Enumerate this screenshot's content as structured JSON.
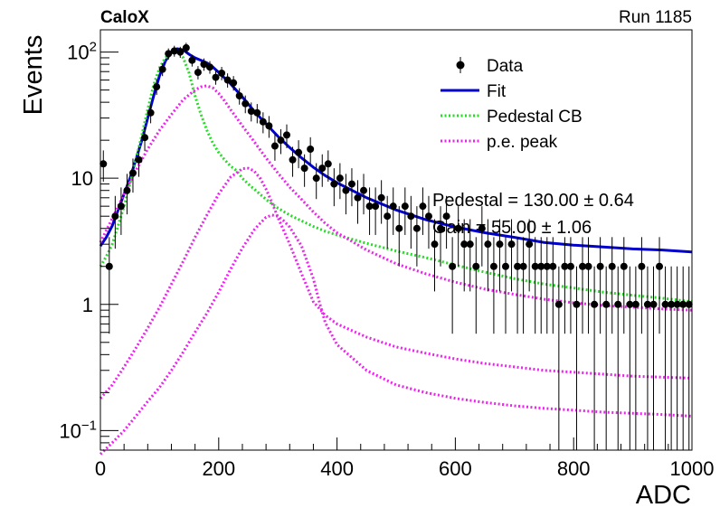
{
  "header": {
    "experiment": "CaloX",
    "run": "Run 1185"
  },
  "colors": {
    "data": "#000000",
    "fit": "#0000cc",
    "pedestal": "#22dd22",
    "pe": "#ee22ee"
  },
  "chart_data": {
    "type": "scatter",
    "title": "",
    "xlabel": "ADC",
    "ylabel": "Events",
    "xlim": [
      0,
      1000
    ],
    "ylim": [
      0.07,
      150
    ],
    "yscale": "log",
    "grid": false,
    "legend_position": "top-right",
    "x_ticks": [
      "0",
      "200",
      "400",
      "600",
      "800",
      "1000"
    ],
    "y_ticks": [
      {
        "value": 0.1,
        "base": "10",
        "exp": "−1"
      },
      {
        "value": 1,
        "label": "1"
      },
      {
        "value": 10,
        "label": "10"
      },
      {
        "value": 100,
        "base": "10",
        "exp": "2"
      }
    ],
    "legend": [
      {
        "key": "data",
        "label": "Data"
      },
      {
        "key": "fit",
        "label": "Fit"
      },
      {
        "key": "pedestal",
        "label": "Pedestal CB"
      },
      {
        "key": "pe",
        "label": "p.e. peak"
      }
    ],
    "annotations": [
      "Pedestal = 130.00 ± 0.64",
      "Gain = 55.00 ± 1.06"
    ],
    "series": [
      {
        "name": "Data",
        "kind": "points",
        "x": [
          5,
          15,
          25,
          35,
          45,
          55,
          65,
          75,
          85,
          95,
          105,
          115,
          125,
          135,
          145,
          155,
          165,
          175,
          185,
          195,
          205,
          215,
          225,
          235,
          245,
          255,
          265,
          275,
          285,
          295,
          305,
          315,
          325,
          335,
          345,
          355,
          365,
          375,
          385,
          395,
          405,
          415,
          425,
          435,
          445,
          455,
          465,
          475,
          485,
          495,
          505,
          515,
          525,
          535,
          545,
          555,
          565,
          575,
          585,
          595,
          605,
          615,
          625,
          635,
          645,
          655,
          665,
          675,
          685,
          695,
          705,
          715,
          725,
          735,
          745,
          755,
          765,
          775,
          785,
          795,
          805,
          815,
          825,
          835,
          845,
          855,
          865,
          875,
          885,
          895,
          905,
          915,
          925,
          935,
          945,
          955,
          965,
          975,
          985,
          995
        ],
        "y": [
          13,
          2,
          5,
          6,
          8,
          11,
          14,
          21,
          33,
          53,
          73,
          97,
          102,
          100,
          108,
          86,
          69,
          80,
          76,
          63,
          68,
          60,
          57,
          45,
          39,
          34,
          33,
          28,
          26,
          18,
          20,
          22,
          14,
          16,
          12,
          17,
          10,
          12,
          13,
          9,
          10,
          8,
          9,
          7,
          8,
          6,
          6,
          7,
          5,
          6,
          4,
          6,
          5,
          4,
          6,
          5,
          3,
          4,
          5,
          2,
          4,
          3,
          3,
          2,
          4,
          3,
          2,
          3,
          2,
          3,
          2,
          2,
          3,
          2,
          2,
          2,
          2,
          1,
          2,
          2,
          1,
          2,
          2,
          1,
          2,
          1,
          2,
          1,
          2,
          1,
          1,
          2,
          1,
          1,
          2,
          1,
          1,
          1,
          1,
          1
        ]
      },
      {
        "name": "Fit",
        "kind": "line",
        "x": [
          0,
          10,
          20,
          30,
          40,
          50,
          60,
          70,
          80,
          90,
          100,
          110,
          120,
          130,
          140,
          150,
          160,
          170,
          180,
          190,
          200,
          220,
          240,
          260,
          280,
          300,
          320,
          340,
          360,
          380,
          400,
          450,
          500,
          550,
          600,
          650,
          700,
          750,
          800,
          850,
          900,
          950,
          1000
        ],
        "y": [
          2.9,
          3.4,
          4.2,
          5.6,
          7.5,
          10,
          14,
          20,
          30,
          45,
          65,
          85,
          100,
          106,
          104,
          96,
          90,
          86,
          82,
          76,
          69,
          56,
          44,
          34,
          27,
          21.5,
          17.5,
          14.5,
          12.2,
          10.5,
          9.2,
          7,
          5.6,
          4.7,
          4.1,
          3.7,
          3.4,
          3.1,
          2.95,
          2.85,
          2.75,
          2.7,
          2.6
        ]
      },
      {
        "name": "Pedestal CB",
        "kind": "dotted",
        "x": [
          0,
          10,
          20,
          30,
          40,
          50,
          60,
          70,
          80,
          90,
          100,
          110,
          120,
          130,
          140,
          150,
          160,
          170,
          180,
          190,
          200,
          210,
          220,
          230,
          240,
          250,
          260,
          280,
          300,
          320,
          340,
          360,
          380,
          400,
          450,
          500,
          550,
          600,
          650,
          700,
          750,
          800,
          850,
          900,
          950,
          1000
        ],
        "y": [
          2.0,
          2.4,
          3.0,
          4.2,
          6.0,
          9,
          14,
          22,
          35,
          55,
          75,
          90,
          98,
          100,
          90,
          68,
          45,
          32,
          24,
          19,
          16,
          14,
          12.5,
          11.5,
          10,
          9,
          8.2,
          6.8,
          5.8,
          5.1,
          4.6,
          4.15,
          3.8,
          3.55,
          3.05,
          2.65,
          2.35,
          2.05,
          1.8,
          1.6,
          1.45,
          1.35,
          1.25,
          1.18,
          1.12,
          1.05
        ]
      },
      {
        "name": "p.e. peak 1",
        "kind": "dotted",
        "x": [
          0,
          20,
          40,
          60,
          80,
          100,
          120,
          140,
          160,
          170,
          180,
          190,
          200,
          210,
          220,
          240,
          260,
          280,
          300,
          320,
          340,
          360,
          380,
          400,
          450,
          500,
          550,
          600,
          650,
          700,
          750,
          800,
          850,
          900,
          950,
          1000
        ],
        "y": [
          3.1,
          4.8,
          7.5,
          11.5,
          17,
          24,
          32,
          42,
          50,
          53,
          54,
          52,
          47,
          41,
          35,
          26,
          19.5,
          14.5,
          11,
          8.5,
          6.8,
          5.4,
          4.4,
          3.7,
          2.7,
          2.1,
          1.75,
          1.5,
          1.32,
          1.2,
          1.1,
          1.03,
          0.98,
          0.95,
          0.92,
          0.9
        ]
      },
      {
        "name": "p.e. peak 2",
        "kind": "dotted",
        "x": [
          0,
          20,
          40,
          60,
          80,
          100,
          120,
          140,
          160,
          180,
          200,
          220,
          240,
          250,
          260,
          270,
          280,
          290,
          300,
          320,
          340,
          360,
          380,
          400,
          450,
          500,
          550,
          600,
          650,
          700,
          750,
          800,
          850,
          900,
          950,
          1000
        ],
        "y": [
          0.18,
          0.23,
          0.32,
          0.45,
          0.65,
          0.95,
          1.45,
          2.2,
          3.4,
          5.1,
          7.5,
          10.2,
          11.9,
          12.0,
          11.4,
          10.0,
          8.2,
          6.4,
          4.9,
          3.0,
          1.75,
          1.05,
          0.82,
          0.7,
          0.55,
          0.46,
          0.41,
          0.37,
          0.34,
          0.32,
          0.3,
          0.29,
          0.28,
          0.27,
          0.265,
          0.26
        ]
      },
      {
        "name": "p.e. peak 3",
        "kind": "dotted",
        "x": [
          0,
          20,
          40,
          60,
          80,
          100,
          120,
          140,
          160,
          180,
          200,
          220,
          240,
          260,
          270,
          280,
          290,
          300,
          310,
          320,
          340,
          360,
          370,
          380,
          400,
          450,
          500,
          550,
          600,
          650,
          700,
          750,
          800,
          850,
          900,
          950,
          1000
        ],
        "y": [
          0.065,
          0.08,
          0.1,
          0.13,
          0.17,
          0.22,
          0.3,
          0.42,
          0.6,
          0.85,
          1.25,
          1.9,
          2.8,
          3.9,
          4.4,
          4.9,
          5.1,
          5.0,
          4.6,
          4.1,
          2.9,
          1.6,
          1.05,
          0.72,
          0.48,
          0.3,
          0.23,
          0.2,
          0.18,
          0.167,
          0.157,
          0.15,
          0.145,
          0.14,
          0.137,
          0.134,
          0.13
        ]
      }
    ]
  }
}
